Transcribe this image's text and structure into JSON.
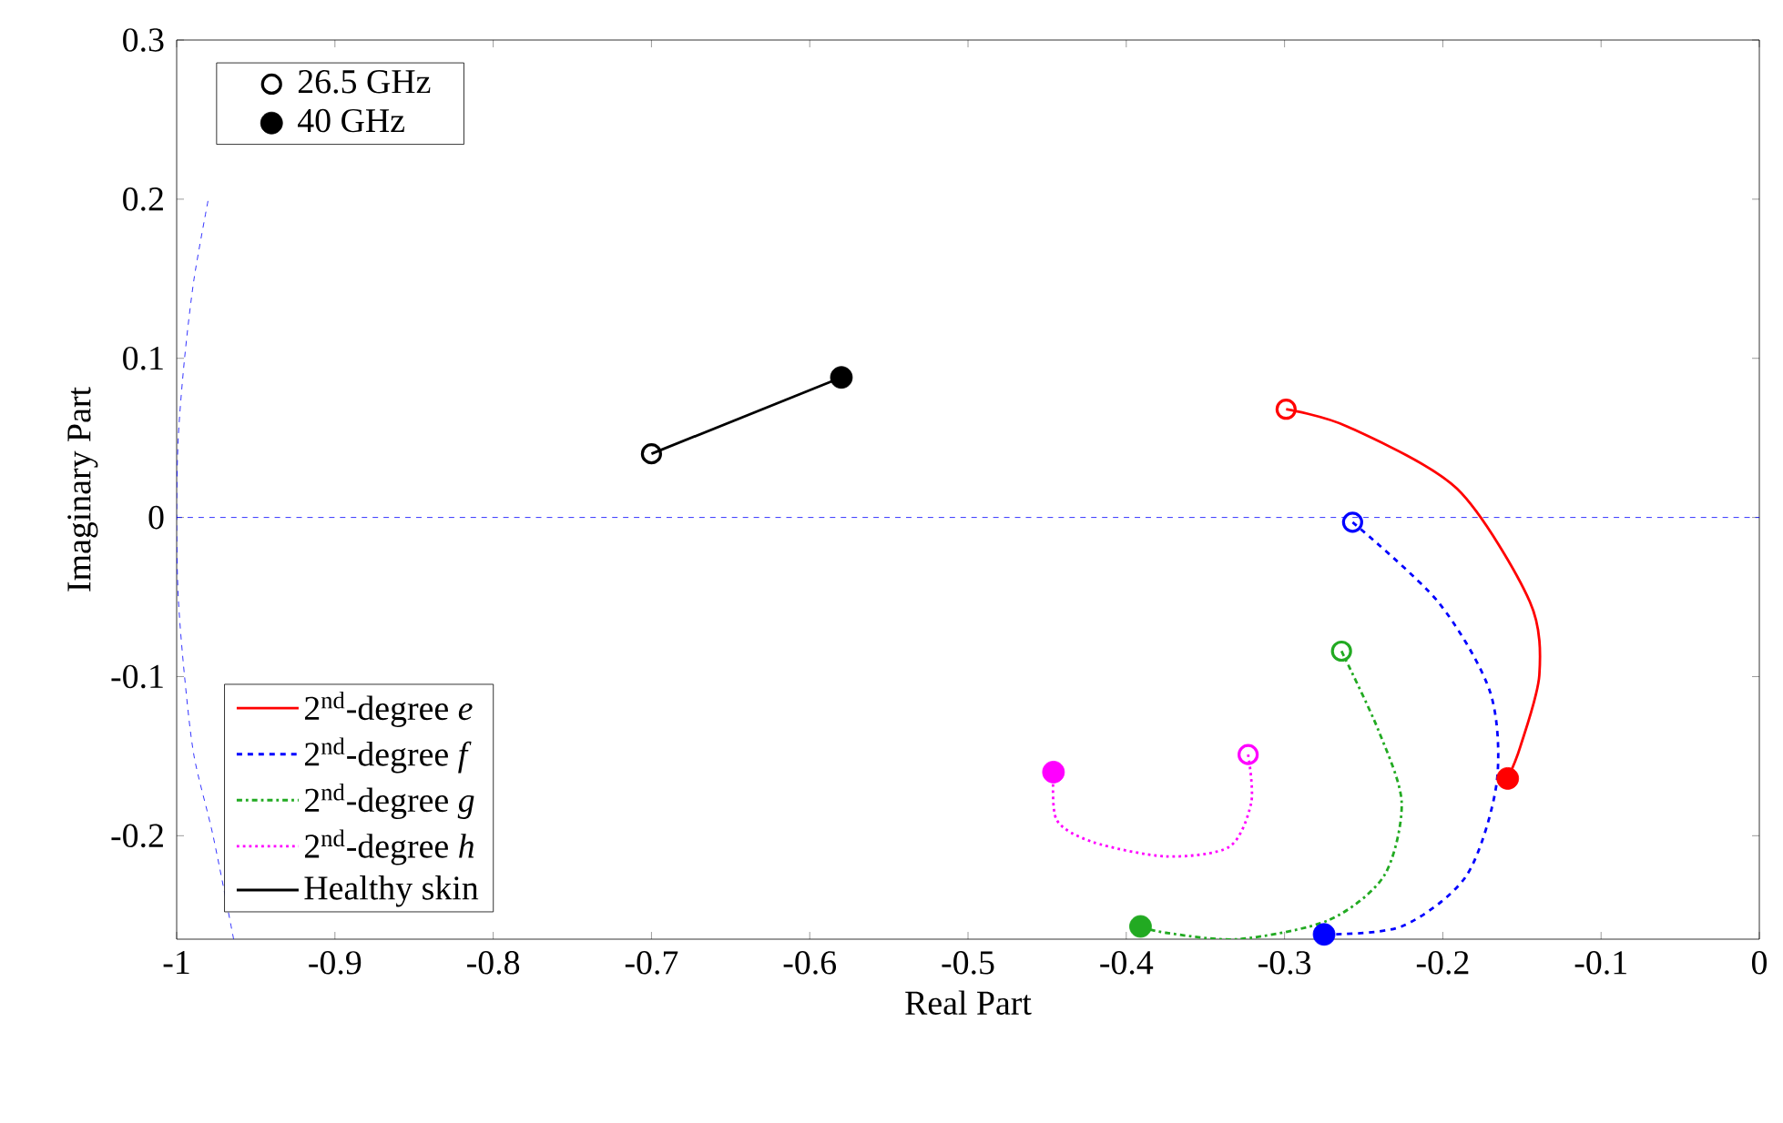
{
  "chart_data": {
    "type": "line",
    "xlabel": "Real Part",
    "ylabel": "Imaginary Part",
    "xlim": [
      -1,
      0
    ],
    "ylim": [
      -0.265,
      0.3
    ],
    "xticks": [
      -1,
      -0.9,
      -0.8,
      -0.7,
      -0.6,
      -0.5,
      -0.4,
      -0.3,
      -0.2,
      -0.1,
      0
    ],
    "yticks": [
      -0.2,
      -0.1,
      0,
      0.1,
      0.2,
      0.3
    ],
    "legend": "left",
    "grid": false,
    "marker": "none",
    "ref_lines": [
      {
        "axis": "y",
        "value": 0,
        "color": "#0000ff",
        "line_style": "dashed"
      }
    ],
    "series": [
      {
        "name": "2$^{nd}$-degree *e*",
        "color": "#ff0000",
        "line_style": "solid",
        "x": [
          -0.299,
          -0.26,
          -0.191,
          -0.145,
          -0.139,
          -0.151,
          -0.159
        ],
        "values": [
          0.068,
          0.057,
          0.018,
          -0.053,
          -0.099,
          -0.144,
          -0.164
        ]
      },
      {
        "name": "2$^{nd}$-degree *f*",
        "color": "#0000ff",
        "line_style": "dashed",
        "x": [
          -0.257,
          -0.203,
          -0.17,
          -0.166,
          -0.185,
          -0.226,
          -0.275
        ],
        "values": [
          -0.003,
          -0.053,
          -0.11,
          -0.167,
          -0.225,
          -0.257,
          -0.262
        ]
      },
      {
        "name": "2$^{nd}$-degree *g*",
        "color": "#22aa22",
        "line_style": "dashdot",
        "x": [
          -0.264,
          -0.241,
          -0.226,
          -0.237,
          -0.272,
          -0.329,
          -0.375,
          -0.391
        ],
        "values": [
          -0.084,
          -0.133,
          -0.179,
          -0.225,
          -0.253,
          -0.265,
          -0.261,
          -0.257
        ]
      },
      {
        "name": "2$^{nd}$-degree *h*",
        "color": "#ff00ff",
        "line_style": "dotted",
        "x": [
          -0.323,
          -0.321,
          -0.335,
          -0.375,
          -0.421,
          -0.444,
          -0.446
        ],
        "values": [
          -0.149,
          -0.179,
          -0.207,
          -0.213,
          -0.204,
          -0.19,
          -0.16
        ]
      },
      {
        "name": "Healthy skin",
        "color": "#000000",
        "line_style": "solid",
        "x": [
          -0.7,
          -0.58
        ],
        "values": [
          0.04,
          0.088
        ]
      },
      {
        "color": "#0000ff",
        "line_style": "dashed",
        "x": [
          -0.964,
          -0.977,
          -0.989,
          -0.995,
          -0.999,
          -1,
          -0.999,
          -0.995,
          -0.989,
          -0.98
        ],
        "values": [
          -0.265,
          -0.2,
          -0.15,
          -0.1,
          -0.05,
          0,
          0.05,
          0.1,
          0.15,
          0.2
        ]
      },
      {
        "name": "26.5 GHz",
        "type": "scatter",
        "marker": "circle",
        "colors": [
          "#ff0000",
          "#0000ff",
          "#22aa22",
          "#ff00ff",
          "#000000"
        ],
        "x": [
          -0.299,
          -0.257,
          -0.264,
          -0.323,
          -0.7
        ],
        "values": [
          0.068,
          -0.003,
          -0.084,
          -0.149,
          0.04
        ]
      },
      {
        "name": "40 GHz",
        "type": "scatter",
        "marker": "circle",
        "colors": [
          "#ff0000",
          "#0000ff",
          "#22aa22",
          "#ff00ff",
          "#000000"
        ],
        "x": [
          -0.159,
          -0.275,
          -0.391,
          -0.446,
          -0.58
        ],
        "values": [
          -0.164,
          -0.262,
          -0.257,
          -0.16,
          0.088
        ]
      }
    ]
  }
}
